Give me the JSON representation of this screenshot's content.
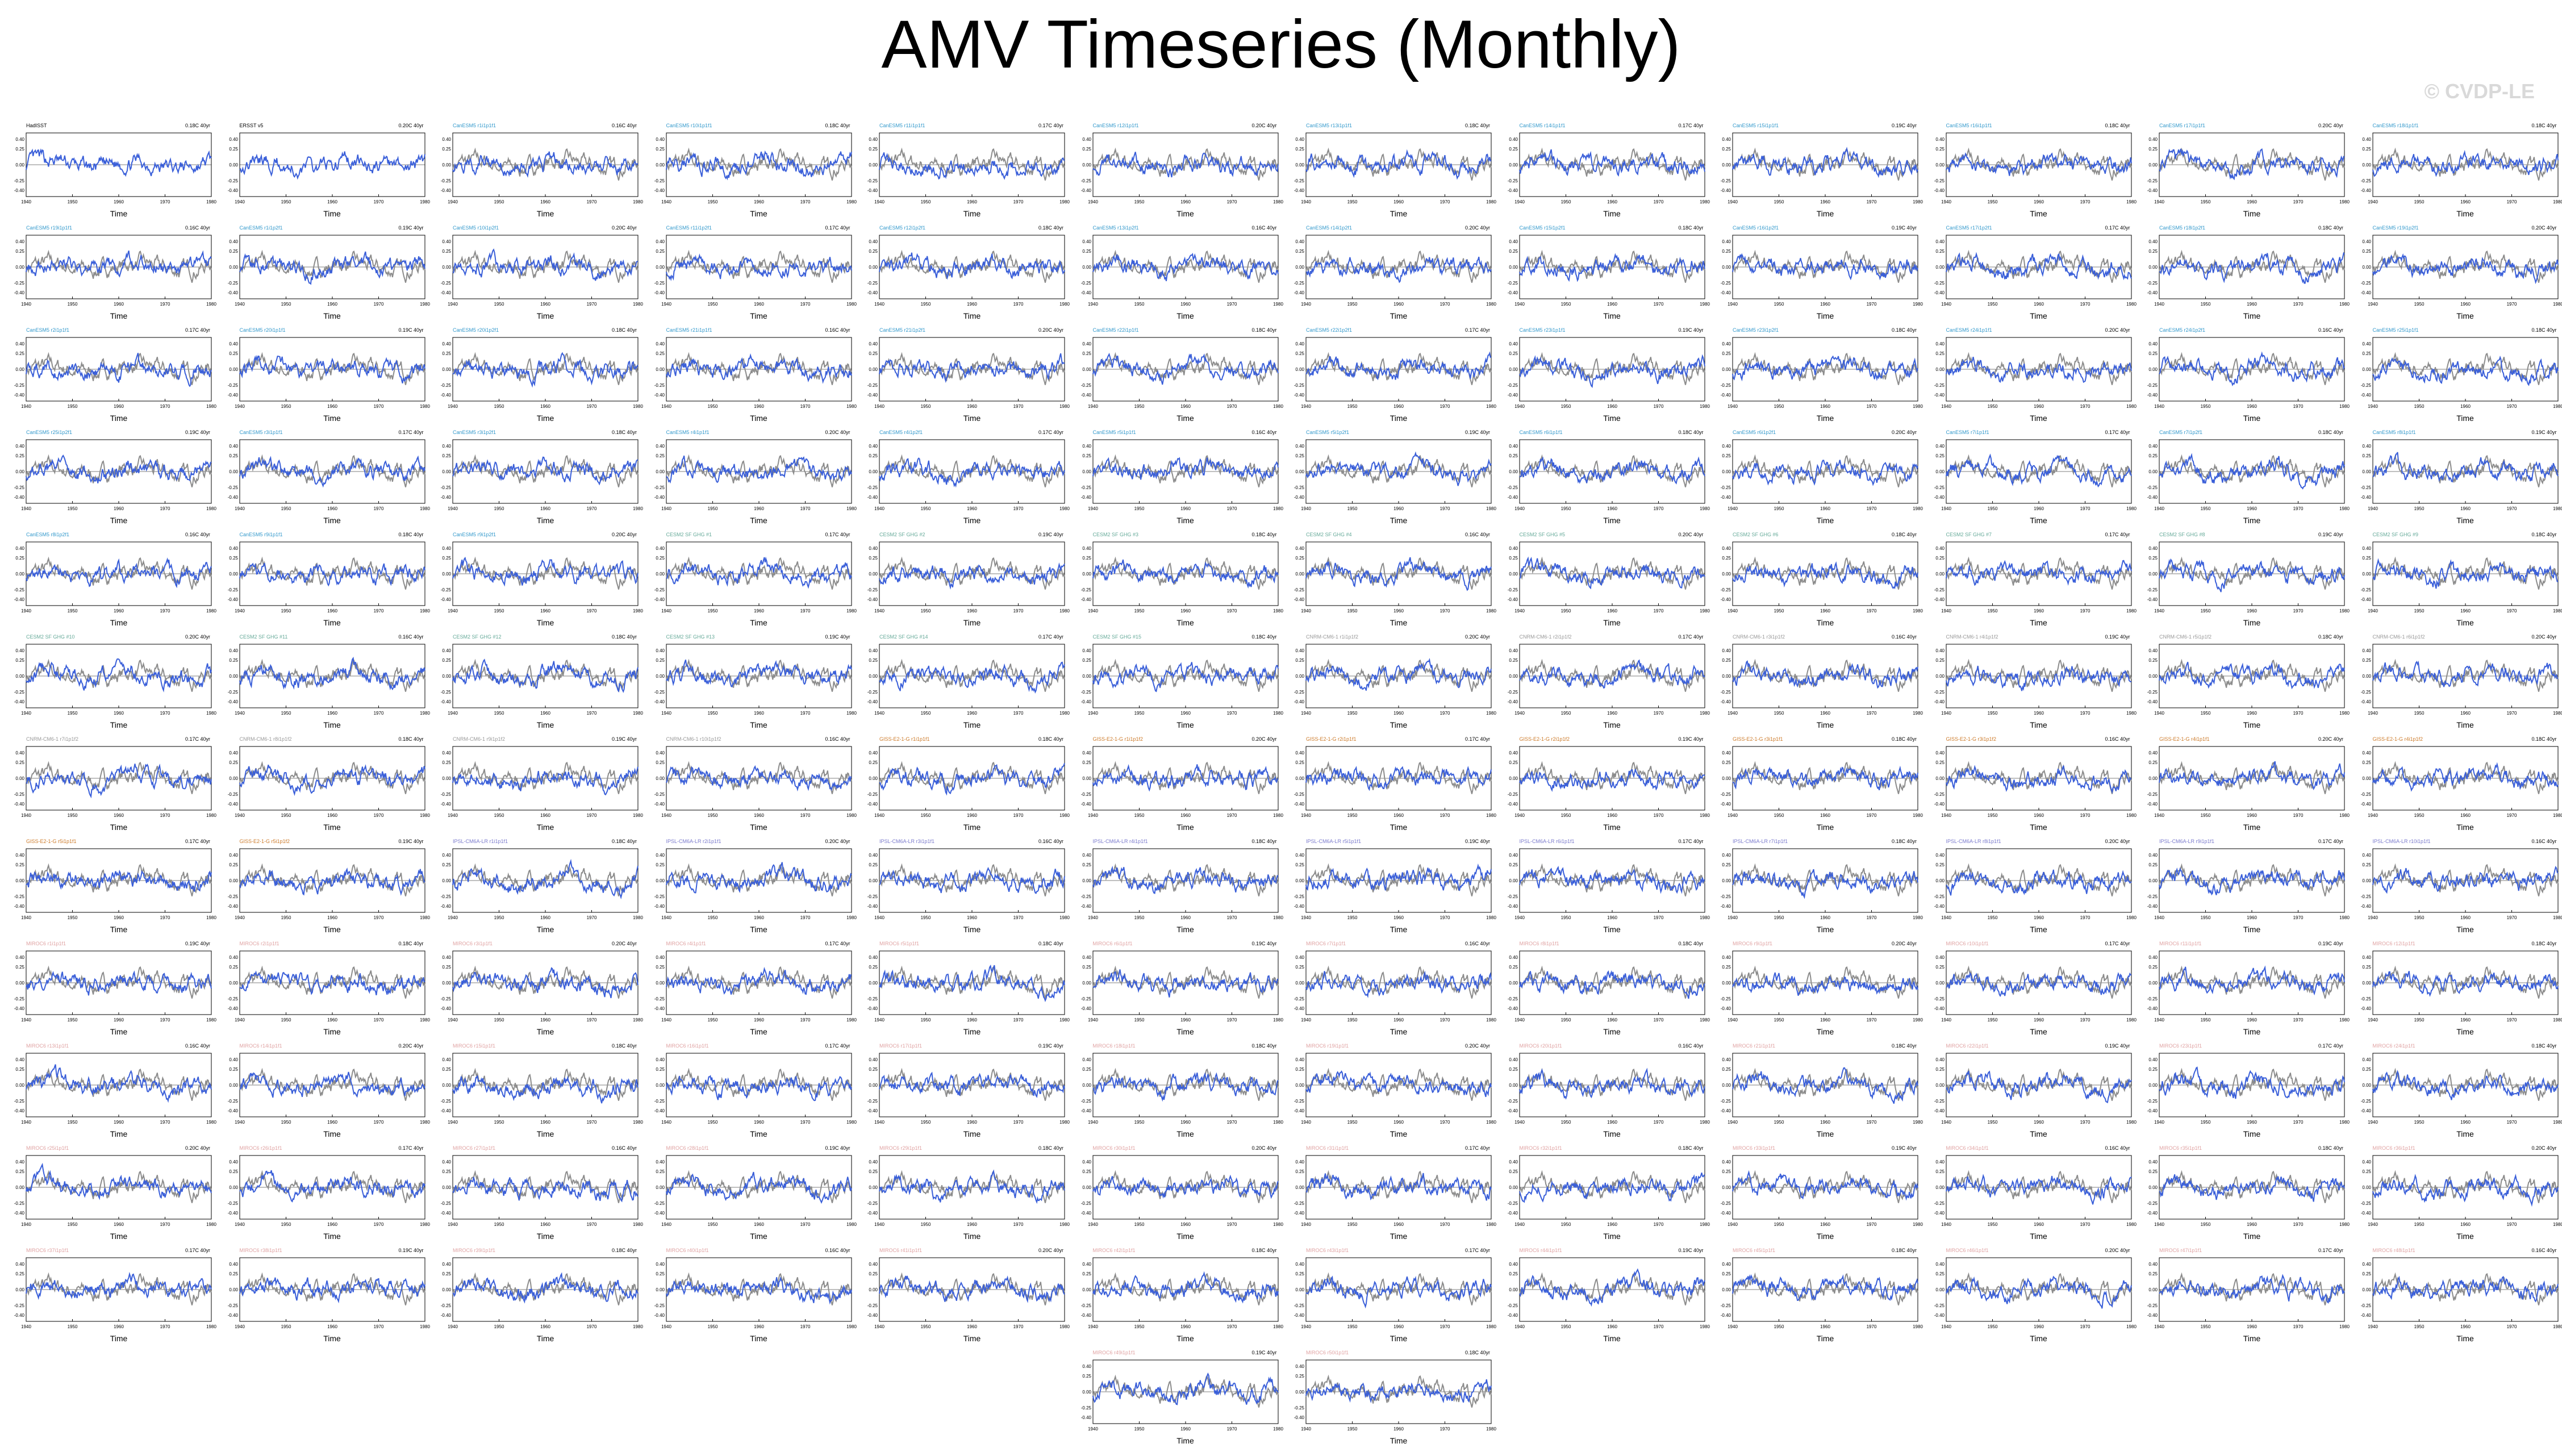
{
  "title": "AMV Timeseries (Monthly)",
  "watermark": "© CVDP-LE",
  "chart_data": {
    "type": "line",
    "xlabel": "Time",
    "ylim": [
      -0.5,
      0.5
    ],
    "xlim": [
      1940,
      1980
    ],
    "xticks": [
      1940,
      1950,
      1960,
      1970,
      1980
    ],
    "yticks": [
      "0.40",
      "0.25",
      "0.00",
      "-0.25",
      "-0.40"
    ],
    "colors": {
      "model": "#3a5fd9",
      "observed": "#8c8c8c"
    },
    "panels": [
      {
        "name": "HadISST",
        "stat": "0.18C 40yr",
        "color": "#000000"
      },
      {
        "name": "ERSST v5",
        "stat": "0.20C 40yr",
        "color": "#000000"
      },
      {
        "name": "CanESM5 r1i1p1f1",
        "stat": "0.16C 40yr",
        "color": "#3399cc"
      },
      {
        "name": "CanESM5 r10i1p1f1",
        "stat": "0.18C 40yr",
        "color": "#3399cc"
      },
      {
        "name": "CanESM5 r11i1p1f1",
        "stat": "0.17C 40yr",
        "color": "#3399cc"
      },
      {
        "name": "CanESM5 r12i1p1f1",
        "stat": "0.20C 40yr",
        "color": "#3399cc"
      },
      {
        "name": "CanESM5 r13i1p1f1",
        "stat": "0.18C 40yr",
        "color": "#3399cc"
      },
      {
        "name": "CanESM5 r14i1p1f1",
        "stat": "0.17C 40yr",
        "color": "#3399cc"
      },
      {
        "name": "CanESM5 r15i1p1f1",
        "stat": "0.19C 40yr",
        "color": "#3399cc"
      },
      {
        "name": "CanESM5 r16i1p1f1",
        "stat": "0.18C 40yr",
        "color": "#3399cc"
      },
      {
        "name": "CanESM5 r17i1p1f1",
        "stat": "0.20C 40yr",
        "color": "#3399cc"
      },
      {
        "name": "CanESM5 r18i1p1f1",
        "stat": "0.18C 40yr",
        "color": "#3399cc"
      },
      {
        "name": "CanESM5 r19i1p1f1",
        "stat": "0.16C 40yr",
        "color": "#3399cc"
      },
      {
        "name": "CanESM5 r1i1p2f1",
        "stat": "0.19C 40yr",
        "color": "#3399cc"
      },
      {
        "name": "CanESM5 r10i1p2f1",
        "stat": "0.20C 40yr",
        "color": "#3399cc"
      },
      {
        "name": "CanESM5 r11i1p2f1",
        "stat": "0.17C 40yr",
        "color": "#3399cc"
      },
      {
        "name": "CanESM5 r12i1p2f1",
        "stat": "0.18C 40yr",
        "color": "#3399cc"
      },
      {
        "name": "CanESM5 r13i1p2f1",
        "stat": "0.16C 40yr",
        "color": "#3399cc"
      },
      {
        "name": "CanESM5 r14i1p2f1",
        "stat": "0.20C 40yr",
        "color": "#3399cc"
      },
      {
        "name": "CanESM5 r15i1p2f1",
        "stat": "0.18C 40yr",
        "color": "#3399cc"
      },
      {
        "name": "CanESM5 r16i1p2f1",
        "stat": "0.19C 40yr",
        "color": "#3399cc"
      },
      {
        "name": "CanESM5 r17i1p2f1",
        "stat": "0.17C 40yr",
        "color": "#3399cc"
      },
      {
        "name": "CanESM5 r18i1p2f1",
        "stat": "0.18C 40yr",
        "color": "#3399cc"
      },
      {
        "name": "CanESM5 r19i1p2f1",
        "stat": "0.20C 40yr",
        "color": "#3399cc"
      },
      {
        "name": "CanESM5 r2i1p1f1",
        "stat": "0.17C 40yr",
        "color": "#3399cc"
      },
      {
        "name": "CanESM5 r20i1p1f1",
        "stat": "0.19C 40yr",
        "color": "#3399cc"
      },
      {
        "name": "CanESM5 r20i1p2f1",
        "stat": "0.18C 40yr",
        "color": "#3399cc"
      },
      {
        "name": "CanESM5 r21i1p1f1",
        "stat": "0.16C 40yr",
        "color": "#3399cc"
      },
      {
        "name": "CanESM5 r21i1p2f1",
        "stat": "0.20C 40yr",
        "color": "#3399cc"
      },
      {
        "name": "CanESM5 r22i1p1f1",
        "stat": "0.18C 40yr",
        "color": "#3399cc"
      },
      {
        "name": "CanESM5 r22i1p2f1",
        "stat": "0.17C 40yr",
        "color": "#3399cc"
      },
      {
        "name": "CanESM5 r23i1p1f1",
        "stat": "0.19C 40yr",
        "color": "#3399cc"
      },
      {
        "name": "CanESM5 r23i1p2f1",
        "stat": "0.18C 40yr",
        "color": "#3399cc"
      },
      {
        "name": "CanESM5 r24i1p1f1",
        "stat": "0.20C 40yr",
        "color": "#3399cc"
      },
      {
        "name": "CanESM5 r24i1p2f1",
        "stat": "0.16C 40yr",
        "color": "#3399cc"
      },
      {
        "name": "CanESM5 r25i1p1f1",
        "stat": "0.18C 40yr",
        "color": "#3399cc"
      },
      {
        "name": "CanESM5 r25i1p2f1",
        "stat": "0.19C 40yr",
        "color": "#3399cc"
      },
      {
        "name": "CanESM5 r3i1p1f1",
        "stat": "0.17C 40yr",
        "color": "#3399cc"
      },
      {
        "name": "CanESM5 r3i1p2f1",
        "stat": "0.18C 40yr",
        "color": "#3399cc"
      },
      {
        "name": "CanESM5 r4i1p1f1",
        "stat": "0.20C 40yr",
        "color": "#3399cc"
      },
      {
        "name": "CanESM5 r4i1p2f1",
        "stat": "0.17C 40yr",
        "color": "#3399cc"
      },
      {
        "name": "CanESM5 r5i1p1f1",
        "stat": "0.16C 40yr",
        "color": "#3399cc"
      },
      {
        "name": "CanESM5 r5i1p2f1",
        "stat": "0.19C 40yr",
        "color": "#3399cc"
      },
      {
        "name": "CanESM5 r6i1p1f1",
        "stat": "0.18C 40yr",
        "color": "#3399cc"
      },
      {
        "name": "CanESM5 r6i1p2f1",
        "stat": "0.20C 40yr",
        "color": "#3399cc"
      },
      {
        "name": "CanESM5 r7i1p1f1",
        "stat": "0.17C 40yr",
        "color": "#3399cc"
      },
      {
        "name": "CanESM5 r7i1p2f1",
        "stat": "0.18C 40yr",
        "color": "#3399cc"
      },
      {
        "name": "CanESM5 r8i1p1f1",
        "stat": "0.19C 40yr",
        "color": "#3399cc"
      },
      {
        "name": "CanESM5 r8i1p2f1",
        "stat": "0.16C 40yr",
        "color": "#3399cc"
      },
      {
        "name": "CanESM5 r9i1p1f1",
        "stat": "0.18C 40yr",
        "color": "#3399cc"
      },
      {
        "name": "CanESM5 r9i1p2f1",
        "stat": "0.20C 40yr",
        "color": "#3399cc"
      },
      {
        "name": "CESM2 SF GHG #1",
        "stat": "0.17C 40yr",
        "color": "#66aa99"
      },
      {
        "name": "CESM2 SF GHG #2",
        "stat": "0.19C 40yr",
        "color": "#66aa99"
      },
      {
        "name": "CESM2 SF GHG #3",
        "stat": "0.18C 40yr",
        "color": "#66aa99"
      },
      {
        "name": "CESM2 SF GHG #4",
        "stat": "0.16C 40yr",
        "color": "#66aa99"
      },
      {
        "name": "CESM2 SF GHG #5",
        "stat": "0.20C 40yr",
        "color": "#66aa99"
      },
      {
        "name": "CESM2 SF GHG #6",
        "stat": "0.18C 40yr",
        "color": "#66aa99"
      },
      {
        "name": "CESM2 SF GHG #7",
        "stat": "0.17C 40yr",
        "color": "#66aa99"
      },
      {
        "name": "CESM2 SF GHG #8",
        "stat": "0.19C 40yr",
        "color": "#66aa99"
      },
      {
        "name": "CESM2 SF GHG #9",
        "stat": "0.18C 40yr",
        "color": "#66aa99"
      },
      {
        "name": "CESM2 SF GHG #10",
        "stat": "0.20C 40yr",
        "color": "#66aa99"
      },
      {
        "name": "CESM2 SF GHG #11",
        "stat": "0.16C 40yr",
        "color": "#66aa99"
      },
      {
        "name": "CESM2 SF GHG #12",
        "stat": "0.18C 40yr",
        "color": "#66aa99"
      },
      {
        "name": "CESM2 SF GHG #13",
        "stat": "0.19C 40yr",
        "color": "#66aa99"
      },
      {
        "name": "CESM2 SF GHG #14",
        "stat": "0.17C 40yr",
        "color": "#66aa99"
      },
      {
        "name": "CESM2 SF GHG #15",
        "stat": "0.18C 40yr",
        "color": "#66aa99"
      },
      {
        "name": "CNRM-CM6-1 r1i1p1f2",
        "stat": "0.20C 40yr",
        "color": "#999999"
      },
      {
        "name": "CNRM-CM6-1 r2i1p1f2",
        "stat": "0.17C 40yr",
        "color": "#999999"
      },
      {
        "name": "CNRM-CM6-1 r3i1p1f2",
        "stat": "0.16C 40yr",
        "color": "#999999"
      },
      {
        "name": "CNRM-CM6-1 r4i1p1f2",
        "stat": "0.19C 40yr",
        "color": "#999999"
      },
      {
        "name": "CNRM-CM6-1 r5i1p1f2",
        "stat": "0.18C 40yr",
        "color": "#999999"
      },
      {
        "name": "CNRM-CM6-1 r6i1p1f2",
        "stat": "0.20C 40yr",
        "color": "#999999"
      },
      {
        "name": "CNRM-CM6-1 r7i1p1f2",
        "stat": "0.17C 40yr",
        "color": "#999999"
      },
      {
        "name": "CNRM-CM6-1 r8i1p1f2",
        "stat": "0.18C 40yr",
        "color": "#999999"
      },
      {
        "name": "CNRM-CM6-1 r9i1p1f2",
        "stat": "0.19C 40yr",
        "color": "#999999"
      },
      {
        "name": "CNRM-CM6-1 r10i1p1f2",
        "stat": "0.16C 40yr",
        "color": "#999999"
      },
      {
        "name": "GISS-E2-1-G r1i1p1f1",
        "stat": "0.18C 40yr",
        "color": "#cc7a29"
      },
      {
        "name": "GISS-E2-1-G r1i1p1f2",
        "stat": "0.20C 40yr",
        "color": "#cc7a29"
      },
      {
        "name": "GISS-E2-1-G r2i1p1f1",
        "stat": "0.17C 40yr",
        "color": "#cc7a29"
      },
      {
        "name": "GISS-E2-1-G r2i1p1f2",
        "stat": "0.19C 40yr",
        "color": "#cc7a29"
      },
      {
        "name": "GISS-E2-1-G r3i1p1f1",
        "stat": "0.18C 40yr",
        "color": "#cc7a29"
      },
      {
        "name": "GISS-E2-1-G r3i1p1f2",
        "stat": "0.16C 40yr",
        "color": "#cc7a29"
      },
      {
        "name": "GISS-E2-1-G r4i1p1f1",
        "stat": "0.20C 40yr",
        "color": "#cc7a29"
      },
      {
        "name": "GISS-E2-1-G r4i1p1f2",
        "stat": "0.18C 40yr",
        "color": "#cc7a29"
      },
      {
        "name": "GISS-E2-1-G r5i1p1f1",
        "stat": "0.17C 40yr",
        "color": "#cc7a29"
      },
      {
        "name": "GISS-E2-1-G r5i1p1f2",
        "stat": "0.19C 40yr",
        "color": "#cc7a29"
      },
      {
        "name": "IPSL-CM6A-LR r1i1p1f1",
        "stat": "0.18C 40yr",
        "color": "#7a7acc"
      },
      {
        "name": "IPSL-CM6A-LR r2i1p1f1",
        "stat": "0.20C 40yr",
        "color": "#7a7acc"
      },
      {
        "name": "IPSL-CM6A-LR r3i1p1f1",
        "stat": "0.16C 40yr",
        "color": "#7a7acc"
      },
      {
        "name": "IPSL-CM6A-LR r4i1p1f1",
        "stat": "0.18C 40yr",
        "color": "#7a7acc"
      },
      {
        "name": "IPSL-CM6A-LR r5i1p1f1",
        "stat": "0.19C 40yr",
        "color": "#7a7acc"
      },
      {
        "name": "IPSL-CM6A-LR r6i1p1f1",
        "stat": "0.17C 40yr",
        "color": "#7a7acc"
      },
      {
        "name": "IPSL-CM6A-LR r7i1p1f1",
        "stat": "0.18C 40yr",
        "color": "#7a7acc"
      },
      {
        "name": "IPSL-CM6A-LR r8i1p1f1",
        "stat": "0.20C 40yr",
        "color": "#7a7acc"
      },
      {
        "name": "IPSL-CM6A-LR r9i1p1f1",
        "stat": "0.17C 40yr",
        "color": "#7a7acc"
      },
      {
        "name": "IPSL-CM6A-LR r10i1p1f1",
        "stat": "0.16C 40yr",
        "color": "#7a7acc"
      },
      {
        "name": "MIROC6 r1i1p1f1",
        "stat": "0.19C 40yr",
        "color": "#e0a3a3"
      },
      {
        "name": "MIROC6 r2i1p1f1",
        "stat": "0.18C 40yr",
        "color": "#e0a3a3"
      },
      {
        "name": "MIROC6 r3i1p1f1",
        "stat": "0.20C 40yr",
        "color": "#e0a3a3"
      },
      {
        "name": "MIROC6 r4i1p1f1",
        "stat": "0.17C 40yr",
        "color": "#e0a3a3"
      },
      {
        "name": "MIROC6 r5i1p1f1",
        "stat": "0.18C 40yr",
        "color": "#e0a3a3"
      },
      {
        "name": "MIROC6 r6i1p1f1",
        "stat": "0.19C 40yr",
        "color": "#e0a3a3"
      },
      {
        "name": "MIROC6 r7i1p1f1",
        "stat": "0.16C 40yr",
        "color": "#e0a3a3"
      },
      {
        "name": "MIROC6 r8i1p1f1",
        "stat": "0.18C 40yr",
        "color": "#e0a3a3"
      },
      {
        "name": "MIROC6 r9i1p1f1",
        "stat": "0.20C 40yr",
        "color": "#e0a3a3"
      },
      {
        "name": "MIROC6 r10i1p1f1",
        "stat": "0.17C 40yr",
        "color": "#e0a3a3"
      },
      {
        "name": "MIROC6 r11i1p1f1",
        "stat": "0.19C 40yr",
        "color": "#e0a3a3"
      },
      {
        "name": "MIROC6 r12i1p1f1",
        "stat": "0.18C 40yr",
        "color": "#e0a3a3"
      },
      {
        "name": "MIROC6 r13i1p1f1",
        "stat": "0.16C 40yr",
        "color": "#e0a3a3"
      },
      {
        "name": "MIROC6 r14i1p1f1",
        "stat": "0.20C 40yr",
        "color": "#e0a3a3"
      },
      {
        "name": "MIROC6 r15i1p1f1",
        "stat": "0.18C 40yr",
        "color": "#e0a3a3"
      },
      {
        "name": "MIROC6 r16i1p1f1",
        "stat": "0.17C 40yr",
        "color": "#e0a3a3"
      },
      {
        "name": "MIROC6 r17i1p1f1",
        "stat": "0.19C 40yr",
        "color": "#e0a3a3"
      },
      {
        "name": "MIROC6 r18i1p1f1",
        "stat": "0.18C 40yr",
        "color": "#e0a3a3"
      },
      {
        "name": "MIROC6 r19i1p1f1",
        "stat": "0.20C 40yr",
        "color": "#e0a3a3"
      },
      {
        "name": "MIROC6 r20i1p1f1",
        "stat": "0.16C 40yr",
        "color": "#e0a3a3"
      },
      {
        "name": "MIROC6 r21i1p1f1",
        "stat": "0.18C 40yr",
        "color": "#e0a3a3"
      },
      {
        "name": "MIROC6 r22i1p1f1",
        "stat": "0.19C 40yr",
        "color": "#e0a3a3"
      },
      {
        "name": "MIROC6 r23i1p1f1",
        "stat": "0.17C 40yr",
        "color": "#e0a3a3"
      },
      {
        "name": "MIROC6 r24i1p1f1",
        "stat": "0.18C 40yr",
        "color": "#e0a3a3"
      },
      {
        "name": "MIROC6 r25i1p1f1",
        "stat": "0.20C 40yr",
        "color": "#e0a3a3"
      },
      {
        "name": "MIROC6 r26i1p1f1",
        "stat": "0.17C 40yr",
        "color": "#e0a3a3"
      },
      {
        "name": "MIROC6 r27i1p1f1",
        "stat": "0.16C 40yr",
        "color": "#e0a3a3"
      },
      {
        "name": "MIROC6 r28i1p1f1",
        "stat": "0.19C 40yr",
        "color": "#e0a3a3"
      },
      {
        "name": "MIROC6 r29i1p1f1",
        "stat": "0.18C 40yr",
        "color": "#e0a3a3"
      },
      {
        "name": "MIROC6 r30i1p1f1",
        "stat": "0.20C 40yr",
        "color": "#e0a3a3"
      },
      {
        "name": "MIROC6 r31i1p1f1",
        "stat": "0.17C 40yr",
        "color": "#e0a3a3"
      },
      {
        "name": "MIROC6 r32i1p1f1",
        "stat": "0.18C 40yr",
        "color": "#e0a3a3"
      },
      {
        "name": "MIROC6 r33i1p1f1",
        "stat": "0.19C 40yr",
        "color": "#e0a3a3"
      },
      {
        "name": "MIROC6 r34i1p1f1",
        "stat": "0.16C 40yr",
        "color": "#e0a3a3"
      },
      {
        "name": "MIROC6 r35i1p1f1",
        "stat": "0.18C 40yr",
        "color": "#e0a3a3"
      },
      {
        "name": "MIROC6 r36i1p1f1",
        "stat": "0.20C 40yr",
        "color": "#e0a3a3"
      },
      {
        "name": "MIROC6 r37i1p1f1",
        "stat": "0.17C 40yr",
        "color": "#e0a3a3"
      },
      {
        "name": "MIROC6 r38i1p1f1",
        "stat": "0.19C 40yr",
        "color": "#e0a3a3"
      },
      {
        "name": "MIROC6 r39i1p1f1",
        "stat": "0.18C 40yr",
        "color": "#e0a3a3"
      },
      {
        "name": "MIROC6 r40i1p1f1",
        "stat": "0.16C 40yr",
        "color": "#e0a3a3"
      },
      {
        "name": "MIROC6 r41i1p1f1",
        "stat": "0.20C 40yr",
        "color": "#e0a3a3"
      },
      {
        "name": "MIROC6 r42i1p1f1",
        "stat": "0.18C 40yr",
        "color": "#e0a3a3"
      },
      {
        "name": "MIROC6 r43i1p1f1",
        "stat": "0.17C 40yr",
        "color": "#e0a3a3"
      },
      {
        "name": "MIROC6 r44i1p1f1",
        "stat": "0.19C 40yr",
        "color": "#e0a3a3"
      },
      {
        "name": "MIROC6 r45i1p1f1",
        "stat": "0.18C 40yr",
        "color": "#e0a3a3"
      },
      {
        "name": "MIROC6 r46i1p1f1",
        "stat": "0.20C 40yr",
        "color": "#e0a3a3"
      },
      {
        "name": "MIROC6 r47i1p1f1",
        "stat": "0.17C 40yr",
        "color": "#e0a3a3"
      },
      {
        "name": "MIROC6 r48i1p1f1",
        "stat": "0.16C 40yr",
        "color": "#e0a3a3"
      },
      {
        "name": "MIROC6 r49i1p1f1",
        "stat": "0.19C 40yr",
        "color": "#e0a3a3"
      },
      {
        "name": "MIROC6 r50i1p1f1",
        "stat": "0.18C 40yr",
        "color": "#e0a3a3"
      }
    ]
  }
}
